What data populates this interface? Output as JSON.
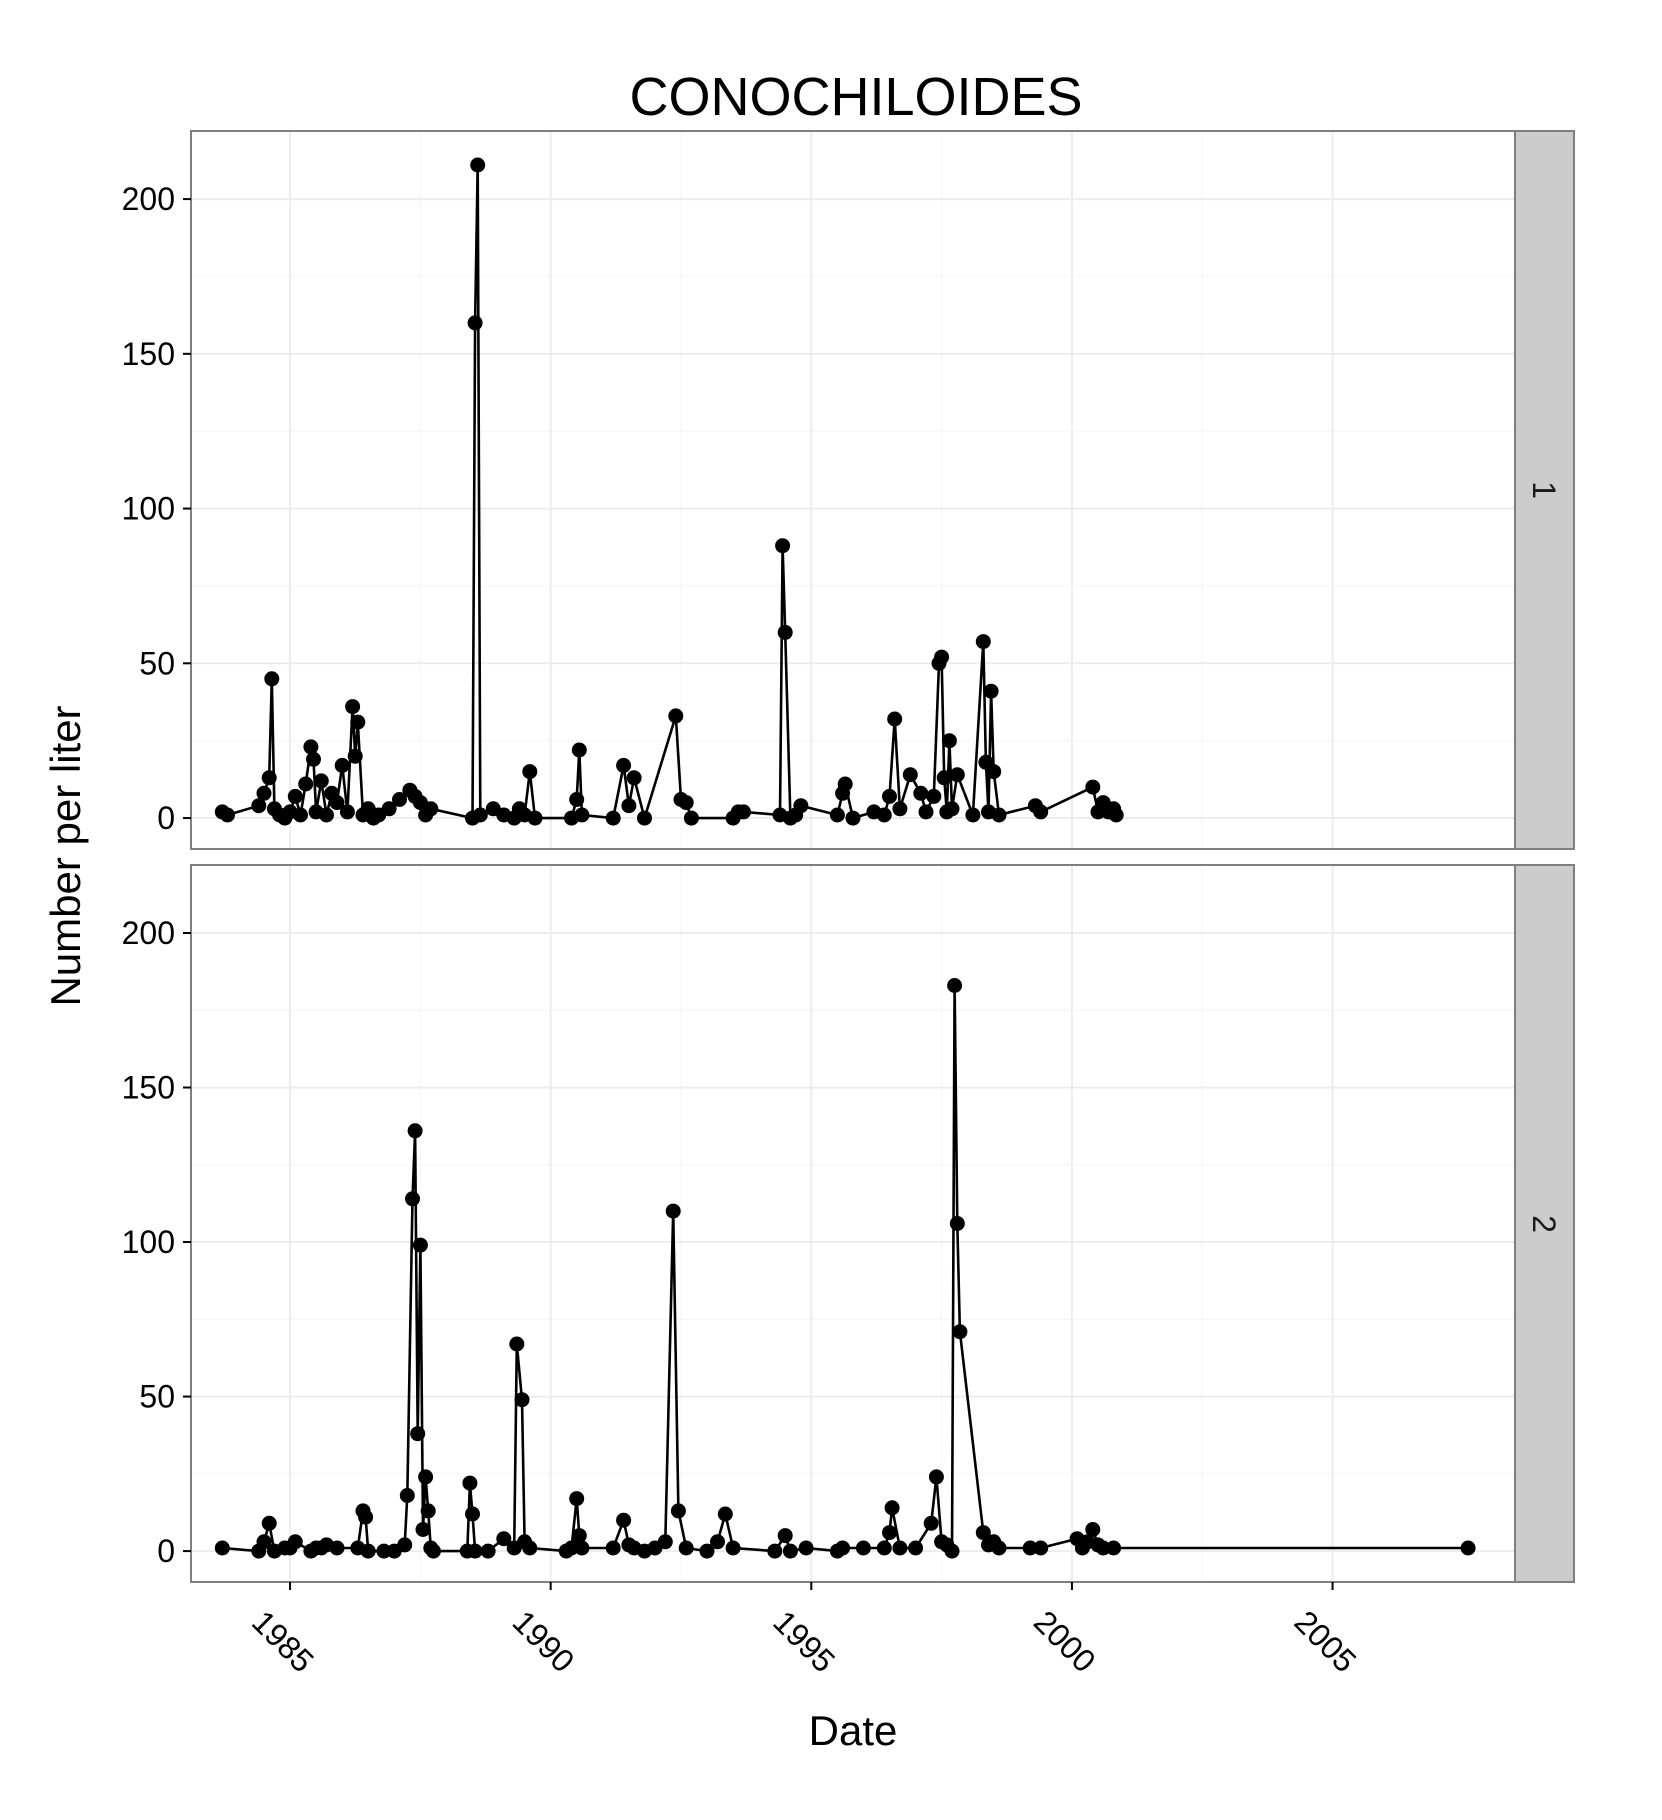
{
  "chart_data": {
    "type": "line",
    "title": "CONOCHILOIDES",
    "xlabel": "Date",
    "ylabel": "Number per liter",
    "xlim": [
      1983.1,
      2008.5
    ],
    "ylim": [
      -10,
      222
    ],
    "x_ticks": [
      1985,
      1990,
      1995,
      2000,
      2005
    ],
    "x_tick_labels": [
      "1985",
      "1990",
      "1995",
      "2000",
      "2005"
    ],
    "y_ticks": [
      0,
      50,
      100,
      150,
      200
    ],
    "y_tick_labels": [
      "0",
      "50",
      "100",
      "150",
      "200"
    ],
    "grid": true,
    "facets": [
      "1",
      "2"
    ],
    "series": [
      {
        "facet": "1",
        "points": [
          [
            1983.7,
            2
          ],
          [
            1983.8,
            1
          ],
          [
            1984.4,
            4
          ],
          [
            1984.5,
            8
          ],
          [
            1984.6,
            13
          ],
          [
            1984.65,
            45
          ],
          [
            1984.7,
            3
          ],
          [
            1984.8,
            1
          ],
          [
            1984.9,
            0
          ],
          [
            1985.0,
            2
          ],
          [
            1985.1,
            7
          ],
          [
            1985.2,
            1
          ],
          [
            1985.3,
            11
          ],
          [
            1985.4,
            23
          ],
          [
            1985.45,
            19
          ],
          [
            1985.5,
            2
          ],
          [
            1985.6,
            12
          ],
          [
            1985.7,
            1
          ],
          [
            1985.8,
            8
          ],
          [
            1985.9,
            5
          ],
          [
            1986.0,
            17
          ],
          [
            1986.1,
            2
          ],
          [
            1986.2,
            36
          ],
          [
            1986.25,
            20
          ],
          [
            1986.3,
            31
          ],
          [
            1986.4,
            1
          ],
          [
            1986.5,
            3
          ],
          [
            1986.6,
            0
          ],
          [
            1986.7,
            1
          ],
          [
            1986.9,
            3
          ],
          [
            1987.1,
            6
          ],
          [
            1987.3,
            9
          ],
          [
            1987.4,
            7
          ],
          [
            1987.5,
            5
          ],
          [
            1987.6,
            1
          ],
          [
            1987.7,
            3
          ],
          [
            1988.5,
            0
          ],
          [
            1988.55,
            160
          ],
          [
            1988.6,
            211
          ],
          [
            1988.65,
            1
          ],
          [
            1988.9,
            3
          ],
          [
            1989.1,
            1
          ],
          [
            1989.3,
            0
          ],
          [
            1989.4,
            3
          ],
          [
            1989.5,
            1
          ],
          [
            1989.6,
            15
          ],
          [
            1989.7,
            0
          ],
          [
            1990.4,
            0
          ],
          [
            1990.5,
            6
          ],
          [
            1990.55,
            22
          ],
          [
            1990.6,
            1
          ],
          [
            1991.2,
            0
          ],
          [
            1991.4,
            17
          ],
          [
            1991.5,
            4
          ],
          [
            1991.6,
            13
          ],
          [
            1991.8,
            0
          ],
          [
            1992.4,
            33
          ],
          [
            1992.5,
            6
          ],
          [
            1992.6,
            5
          ],
          [
            1992.7,
            0
          ],
          [
            1993.5,
            0
          ],
          [
            1993.6,
            2
          ],
          [
            1993.7,
            2
          ],
          [
            1994.4,
            1
          ],
          [
            1994.45,
            88
          ],
          [
            1994.5,
            60
          ],
          [
            1994.6,
            0
          ],
          [
            1994.7,
            1
          ],
          [
            1994.8,
            4
          ],
          [
            1995.5,
            1
          ],
          [
            1995.6,
            8
          ],
          [
            1995.65,
            11
          ],
          [
            1995.8,
            0
          ],
          [
            1996.2,
            2
          ],
          [
            1996.4,
            1
          ],
          [
            1996.5,
            7
          ],
          [
            1996.6,
            32
          ],
          [
            1996.7,
            3
          ],
          [
            1996.9,
            14
          ],
          [
            1997.1,
            8
          ],
          [
            1997.2,
            2
          ],
          [
            1997.35,
            7
          ],
          [
            1997.45,
            50
          ],
          [
            1997.5,
            52
          ],
          [
            1997.55,
            13
          ],
          [
            1997.6,
            2
          ],
          [
            1997.65,
            25
          ],
          [
            1997.7,
            3
          ],
          [
            1997.8,
            14
          ],
          [
            1998.1,
            1
          ],
          [
            1998.3,
            57
          ],
          [
            1998.35,
            18
          ],
          [
            1998.4,
            2
          ],
          [
            1998.45,
            41
          ],
          [
            1998.5,
            15
          ],
          [
            1998.6,
            1
          ],
          [
            1999.3,
            4
          ],
          [
            1999.4,
            2
          ],
          [
            2000.4,
            10
          ],
          [
            2000.5,
            2
          ],
          [
            2000.6,
            5
          ],
          [
            2000.7,
            2
          ],
          [
            2000.8,
            3
          ],
          [
            2000.85,
            1
          ]
        ]
      },
      {
        "facet": "2",
        "points": [
          [
            1983.7,
            1
          ],
          [
            1984.4,
            0
          ],
          [
            1984.5,
            3
          ],
          [
            1984.6,
            9
          ],
          [
            1984.7,
            0
          ],
          [
            1984.9,
            1
          ],
          [
            1985.0,
            1
          ],
          [
            1985.1,
            3
          ],
          [
            1985.4,
            0
          ],
          [
            1985.5,
            1
          ],
          [
            1985.6,
            1
          ],
          [
            1985.7,
            2
          ],
          [
            1985.9,
            1
          ],
          [
            1986.3,
            1
          ],
          [
            1986.4,
            13
          ],
          [
            1986.45,
            11
          ],
          [
            1986.5,
            0
          ],
          [
            1986.8,
            0
          ],
          [
            1987.0,
            0
          ],
          [
            1987.2,
            2
          ],
          [
            1987.25,
            18
          ],
          [
            1987.35,
            114
          ],
          [
            1987.4,
            136
          ],
          [
            1987.45,
            38
          ],
          [
            1987.5,
            99
          ],
          [
            1987.55,
            7
          ],
          [
            1987.6,
            24
          ],
          [
            1987.65,
            13
          ],
          [
            1987.7,
            1
          ],
          [
            1987.75,
            0
          ],
          [
            1988.4,
            0
          ],
          [
            1988.45,
            22
          ],
          [
            1988.5,
            12
          ],
          [
            1988.55,
            0
          ],
          [
            1988.8,
            0
          ],
          [
            1989.1,
            4
          ],
          [
            1989.3,
            1
          ],
          [
            1989.35,
            67
          ],
          [
            1989.45,
            49
          ],
          [
            1989.5,
            3
          ],
          [
            1989.6,
            1
          ],
          [
            1990.3,
            0
          ],
          [
            1990.4,
            1
          ],
          [
            1990.5,
            17
          ],
          [
            1990.55,
            5
          ],
          [
            1990.6,
            1
          ],
          [
            1991.2,
            1
          ],
          [
            1991.4,
            10
          ],
          [
            1991.5,
            2
          ],
          [
            1991.6,
            1
          ],
          [
            1991.8,
            0
          ],
          [
            1992.0,
            1
          ],
          [
            1992.2,
            3
          ],
          [
            1992.35,
            110
          ],
          [
            1992.45,
            13
          ],
          [
            1992.6,
            1
          ],
          [
            1993.0,
            0
          ],
          [
            1993.2,
            3
          ],
          [
            1993.35,
            12
          ],
          [
            1993.5,
            1
          ],
          [
            1994.3,
            0
          ],
          [
            1994.5,
            5
          ],
          [
            1994.6,
            0
          ],
          [
            1994.9,
            1
          ],
          [
            1995.5,
            0
          ],
          [
            1995.6,
            1
          ],
          [
            1996.0,
            1
          ],
          [
            1996.4,
            1
          ],
          [
            1996.5,
            6
          ],
          [
            1996.55,
            14
          ],
          [
            1996.7,
            1
          ],
          [
            1997.0,
            1
          ],
          [
            1997.3,
            9
          ],
          [
            1997.4,
            24
          ],
          [
            1997.5,
            3
          ],
          [
            1997.6,
            2
          ],
          [
            1997.7,
            0
          ],
          [
            1997.75,
            183
          ],
          [
            1997.8,
            106
          ],
          [
            1997.85,
            71
          ],
          [
            1998.3,
            6
          ],
          [
            1998.4,
            2
          ],
          [
            1998.5,
            3
          ],
          [
            1998.6,
            1
          ],
          [
            1999.2,
            1
          ],
          [
            1999.4,
            1
          ],
          [
            2000.1,
            4
          ],
          [
            2000.2,
            1
          ],
          [
            2000.3,
            3
          ],
          [
            2000.4,
            7
          ],
          [
            2000.5,
            2
          ],
          [
            2000.6,
            1
          ],
          [
            2000.8,
            1
          ],
          [
            2007.6,
            1
          ]
        ]
      }
    ]
  }
}
